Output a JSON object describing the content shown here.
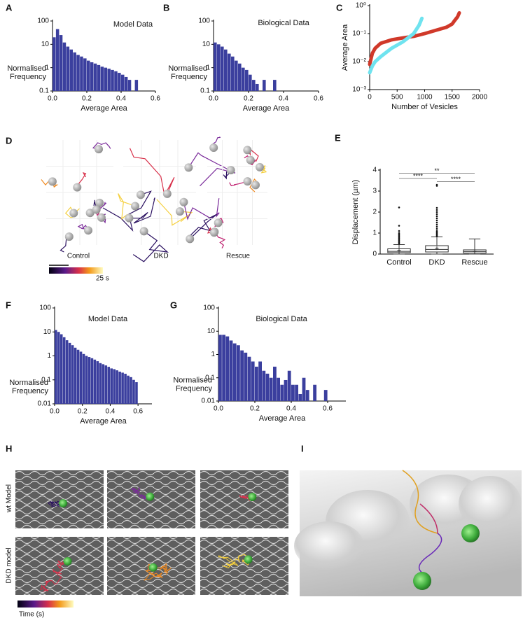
{
  "panel_letters": [
    "A",
    "B",
    "C",
    "D",
    "E",
    "F",
    "G",
    "H",
    "I"
  ],
  "panel_d": {
    "labels": [
      "Control",
      "DKD",
      "Rescue"
    ],
    "scale_label": "25 s"
  },
  "panel_h": {
    "row_labels": [
      "wt Model",
      "DKD model"
    ],
    "colorbar_label": "Time (s)"
  },
  "chart_data": [
    {
      "type": "histogram",
      "title": "Model Data",
      "xlabel": "Average Area",
      "ylabel": [
        "Normalised",
        "Frequency"
      ],
      "bins": [
        0,
        0.02,
        0.04,
        0.06,
        0.08,
        0.1,
        0.12,
        0.14,
        0.16,
        0.18,
        0.2,
        0.22,
        0.24,
        0.26,
        0.28,
        0.3,
        0.32,
        0.34,
        0.36,
        0.38,
        0.4,
        0.42,
        0.44,
        0.46,
        0.48,
        0.5
      ],
      "counts": [
        20,
        45,
        25,
        12,
        8,
        6,
        4.5,
        3.5,
        3,
        2.5,
        2,
        1.7,
        1.5,
        1.3,
        1.1,
        1,
        0.9,
        0.8,
        0.7,
        0.6,
        0.5,
        0.4,
        0.3,
        null,
        0.3
      ],
      "color": "#3b3f9e",
      "xlim": [
        0,
        0.6
      ],
      "xticks": [
        {
          "value": 0,
          "label": "0.0"
        },
        0.2,
        0.4,
        0.6
      ],
      "ylim": [
        0.1,
        100
      ],
      "yticks": [
        0.1,
        1,
        10,
        100
      ],
      "log_y": true
    },
    {
      "type": "histogram",
      "title": "Biological Data",
      "xlabel": "Average Area",
      "ylabel": [
        "Normalised",
        "Frequency"
      ],
      "bins": [
        0,
        0.02,
        0.04,
        0.06,
        0.08,
        0.1,
        0.12,
        0.14,
        0.16,
        0.18,
        0.2,
        0.22,
        0.24,
        0.26,
        0.28,
        0.3,
        0.32,
        0.34,
        0.36
      ],
      "counts": [
        12,
        10,
        8,
        6,
        4,
        3,
        2,
        1.5,
        1,
        0.8,
        0.5,
        0.3,
        0.2,
        null,
        0.3,
        null,
        null,
        0.3
      ],
      "color": "#3b3f9e",
      "xlim": [
        0,
        0.6
      ],
      "xticks": [
        {
          "value": 0,
          "label": "0.0"
        },
        0.2,
        0.4,
        0.6
      ],
      "ylim": [
        0.1,
        100
      ],
      "yticks": [
        0.1,
        1,
        10,
        100
      ],
      "log_y": true
    },
    {
      "type": "line",
      "xlabel": "Number of Vesicles",
      "ylabel": "Average Area",
      "xlim": [
        0,
        2000
      ],
      "xticks": [
        0,
        500,
        1000,
        1500,
        2000
      ],
      "ylim": [
        0.001,
        1
      ],
      "yticks": [
        {
          "value": 0.001,
          "label": "10⁻³"
        },
        {
          "value": 0.01,
          "label": "10⁻²"
        },
        {
          "value": 0.1,
          "label": "10⁻¹"
        },
        {
          "value": 1,
          "label": "10⁰"
        }
      ],
      "log_y": true,
      "series": [
        {
          "color": "#d0392a",
          "x": [
            0,
            50,
            100,
            200,
            400,
            600,
            800,
            1000,
            1200,
            1400,
            1500,
            1550,
            1600,
            1630
          ],
          "values": [
            0.008,
            0.02,
            0.03,
            0.045,
            0.06,
            0.07,
            0.08,
            0.1,
            0.13,
            0.17,
            0.22,
            0.3,
            0.4,
            0.55
          ]
        },
        {
          "color": "#6fe3ef",
          "x": [
            0,
            50,
            100,
            200,
            400,
            600,
            800,
            900,
            950
          ],
          "values": [
            0.004,
            0.007,
            0.01,
            0.015,
            0.03,
            0.05,
            0.1,
            0.2,
            0.35
          ]
        }
      ]
    },
    {
      "type": "box",
      "ylabel": "Displacement (µm)",
      "categories": [
        "Control",
        "DKD",
        "Rescue"
      ],
      "ylim": [
        0,
        4
      ],
      "yticks": [
        0,
        1,
        2,
        3,
        4
      ],
      "boxes": [
        {
          "min": 0,
          "q1": 0.07,
          "median": 0.13,
          "q3": 0.25,
          "max": 0.45,
          "mean": 0.17,
          "outliers": [
            0.5,
            0.55,
            0.6,
            0.65,
            0.7,
            0.75,
            0.8,
            0.85,
            0.9,
            0.95,
            1.0,
            1.1,
            1.35,
            2.22
          ]
        },
        {
          "min": 0,
          "q1": 0.1,
          "median": 0.22,
          "q3": 0.4,
          "max": 0.82,
          "mean": 0.28,
          "outliers": [
            0.85,
            0.9,
            0.95,
            1.0,
            1.05,
            1.1,
            1.2,
            1.3,
            1.4,
            1.5,
            1.6,
            1.7,
            1.8,
            1.9,
            2.0,
            2.1,
            2.2,
            3.25,
            3.3
          ]
        },
        {
          "min": 0,
          "q1": 0.05,
          "median": 0.12,
          "q3": 0.2,
          "max": 0.72,
          "mean": 0.12,
          "outliers": []
        }
      ],
      "significance": [
        {
          "between": [
            "Control",
            "Rescue"
          ],
          "y": 3.85,
          "label": "**"
        },
        {
          "between": [
            "Control",
            "DKD"
          ],
          "y": 3.6,
          "label": "****"
        },
        {
          "between": [
            "DKD",
            "Rescue"
          ],
          "y": 3.45,
          "label": "****"
        }
      ]
    },
    {
      "type": "histogram",
      "title": "Model Data",
      "xlabel": "Average Area",
      "ylabel": [
        "Normalised",
        "Frequency"
      ],
      "bins": [
        0,
        0.02,
        0.04,
        0.06,
        0.08,
        0.1,
        0.12,
        0.14,
        0.16,
        0.18,
        0.2,
        0.22,
        0.24,
        0.26,
        0.28,
        0.3,
        0.32,
        0.34,
        0.36,
        0.38,
        0.4,
        0.42,
        0.44,
        0.46,
        0.48,
        0.5,
        0.52,
        0.54,
        0.56,
        0.58,
        0.6
      ],
      "counts": [
        12,
        10,
        8,
        6,
        4.5,
        3.5,
        2.8,
        2.2,
        1.8,
        1.5,
        1.2,
        1,
        0.9,
        0.8,
        0.7,
        0.6,
        0.5,
        0.45,
        0.4,
        0.35,
        0.3,
        0.28,
        0.25,
        0.22,
        0.2,
        0.18,
        0.15,
        0.13,
        0.1,
        0.08
      ],
      "color": "#3b3f9e",
      "xlim": [
        0,
        0.7
      ],
      "xticks": [
        {
          "value": 0,
          "label": "0.0"
        },
        0.2,
        0.4,
        0.6
      ],
      "ylim": [
        0.01,
        100
      ],
      "yticks": [
        0.01,
        0.1,
        1,
        10,
        100
      ],
      "log_y": true
    },
    {
      "type": "histogram",
      "title": "Biological Data",
      "xlabel": "Average Area",
      "ylabel": [
        "Normalised",
        "Frequency"
      ],
      "bins": [
        0,
        0.02,
        0.04,
        0.06,
        0.08,
        0.1,
        0.12,
        0.14,
        0.16,
        0.18,
        0.2,
        0.22,
        0.24,
        0.26,
        0.28,
        0.3,
        0.32,
        0.34,
        0.36,
        0.38,
        0.4,
        0.42,
        0.44,
        0.46,
        0.48,
        0.5,
        0.52,
        0.54,
        0.56,
        0.58,
        0.6
      ],
      "counts": [
        7,
        7,
        6,
        4,
        3,
        2.5,
        1.5,
        1.2,
        0.8,
        0.5,
        0.3,
        0.5,
        0.2,
        0.15,
        0.1,
        0.3,
        0.1,
        0.05,
        0.08,
        0.2,
        0.05,
        0.05,
        0.02,
        0.1,
        0.03,
        null,
        0.05,
        null,
        null,
        0.03
      ],
      "color": "#3b3f9e",
      "xlim": [
        0,
        0.7
      ],
      "xticks": [
        {
          "value": 0,
          "label": "0.0"
        },
        0.2,
        0.4,
        0.6
      ],
      "ylim": [
        0.01,
        100
      ],
      "yticks": [
        0.01,
        0.1,
        1,
        10,
        100
      ],
      "log_y": true
    }
  ]
}
